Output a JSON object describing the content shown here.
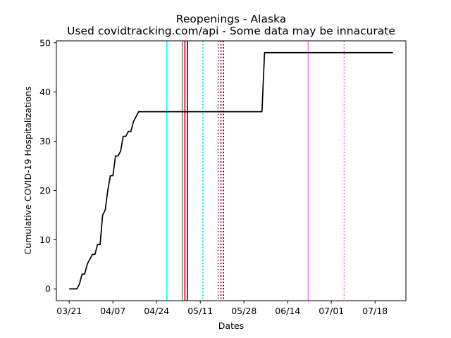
{
  "chart_data": {
    "type": "line",
    "title": "Reopenings - Alaska",
    "subtitle": "Used covidtracking.com/api - Some data may be innacurate",
    "xlabel": "Dates",
    "ylabel": "Cumulative COVID-19 Hospitalizations",
    "year": 2020,
    "xlim": [
      "2020-03-16",
      "2020-07-30"
    ],
    "ylim": [
      -2.4,
      50.4
    ],
    "x_ticks": [
      "2020-03-21",
      "2020-04-07",
      "2020-04-24",
      "2020-05-11",
      "2020-05-28",
      "2020-06-14",
      "2020-07-01",
      "2020-07-18"
    ],
    "x_tick_labels": [
      "03/21",
      "04/07",
      "04/24",
      "05/11",
      "05/28",
      "06/14",
      "07/01",
      "07/18"
    ],
    "y_ticks": [
      0,
      10,
      20,
      30,
      40,
      50
    ],
    "grid": false,
    "series": [
      {
        "color": "#000000",
        "points": [
          [
            "2020-03-21",
            0
          ],
          [
            "2020-03-24",
            0
          ],
          [
            "2020-03-25",
            1
          ],
          [
            "2020-03-26",
            3
          ],
          [
            "2020-03-27",
            3
          ],
          [
            "2020-03-28",
            5
          ],
          [
            "2020-03-30",
            7
          ],
          [
            "2020-03-31",
            7
          ],
          [
            "2020-04-01",
            9
          ],
          [
            "2020-04-02",
            9
          ],
          [
            "2020-04-03",
            15
          ],
          [
            "2020-04-04",
            16
          ],
          [
            "2020-04-05",
            20
          ],
          [
            "2020-04-06",
            23
          ],
          [
            "2020-04-07",
            23
          ],
          [
            "2020-04-08",
            27
          ],
          [
            "2020-04-09",
            27
          ],
          [
            "2020-04-10",
            28
          ],
          [
            "2020-04-11",
            31
          ],
          [
            "2020-04-12",
            31
          ],
          [
            "2020-04-13",
            32
          ],
          [
            "2020-04-14",
            32
          ],
          [
            "2020-04-15",
            34
          ],
          [
            "2020-04-17",
            36
          ],
          [
            "2020-06-04",
            36
          ],
          [
            "2020-06-05",
            48
          ],
          [
            "2020-07-25",
            48
          ]
        ]
      }
    ],
    "vlines": [
      {
        "date": "2020-04-28",
        "color": "#00ffff",
        "style": "solid"
      },
      {
        "date": "2020-05-04",
        "color": "#808080",
        "style": "solid"
      },
      {
        "date": "2020-05-05",
        "color": "#008000",
        "style": "solid"
      },
      {
        "date": "2020-05-05",
        "color": "#ff0000",
        "style": "solid"
      },
      {
        "date": "2020-05-06",
        "color": "#0000cd",
        "style": "solid"
      },
      {
        "date": "2020-05-12",
        "color": "#00e5e5",
        "style": "dotted"
      },
      {
        "date": "2020-05-18",
        "color": "#808080",
        "style": "dotted"
      },
      {
        "date": "2020-05-19",
        "color": "#008000",
        "style": "dotted"
      },
      {
        "date": "2020-05-19",
        "color": "#ff0000",
        "style": "dotted"
      },
      {
        "date": "2020-05-20",
        "color": "#0000cd",
        "style": "dotted"
      },
      {
        "date": "2020-06-22",
        "color": "#ee82ee",
        "style": "solid"
      },
      {
        "date": "2020-07-06",
        "color": "#ee82ee",
        "style": "dotted"
      }
    ]
  }
}
